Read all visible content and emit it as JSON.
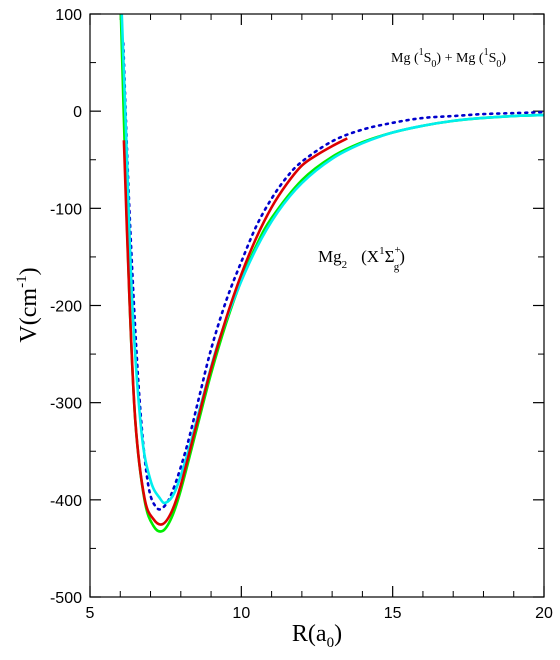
{
  "chart_data": {
    "type": "line",
    "xlim": [
      5,
      20
    ],
    "ylim": [
      -500,
      100
    ],
    "x_ticks": [
      5,
      10,
      15,
      20
    ],
    "y_ticks": [
      -500,
      -400,
      -300,
      -200,
      -100,
      0,
      100
    ],
    "x_minor_step": 1,
    "y_minor_step": 50,
    "xlabel": {
      "main": "R(a",
      "sub": "0",
      "close": ")"
    },
    "ylabel": {
      "main": "V(cm",
      "sup": "-1",
      "close": ")"
    },
    "annotations": {
      "asymptote": {
        "a": "Mg (",
        "sup1": "1",
        "b": "S",
        "sub1": "0",
        "c": ") + Mg (",
        "sup2": "1",
        "d": "S",
        "sub2": "0",
        "e": ")"
      },
      "state": {
        "a": "Mg",
        "sub1": "2",
        "b": "(X",
        "sup1": "1",
        "c": "Σ",
        "sup2": "+",
        "sub2": "g",
        "d": ")"
      }
    },
    "series": [
      {
        "color": "#0000cc",
        "style": "dotted",
        "x": [
          6.1,
          6.3,
          6.6,
          6.9,
          7.2,
          7.5,
          7.8,
          8.2,
          8.6,
          9.0,
          9.5,
          10.0,
          10.5,
          11.0,
          11.5,
          12.0,
          13.0,
          14.0,
          15.0,
          16.0,
          17.0,
          18.0,
          19.0,
          20.0
        ],
        "y": [
          70,
          -100,
          -280,
          -380,
          -408,
          -405,
          -385,
          -345,
          -295,
          -245,
          -195,
          -155,
          -118,
          -90,
          -68,
          -52,
          -31,
          -19,
          -12,
          -7,
          -5,
          -3,
          -2,
          -1
        ]
      },
      {
        "color": "#00ee00",
        "style": "solid",
        "x": [
          6.02,
          6.15,
          6.3,
          6.5,
          6.8,
          7.1,
          7.4,
          7.7,
          8.0,
          8.5,
          9.0,
          9.5,
          10.0,
          10.5,
          11.0,
          12.0,
          13.0,
          14.0,
          15.0,
          16.0,
          17.0,
          18.0,
          19.0,
          20.0
        ],
        "y": [
          100,
          -40,
          -190,
          -320,
          -400,
          -427,
          -432,
          -418,
          -390,
          -330,
          -270,
          -218,
          -174,
          -138,
          -110,
          -71,
          -47,
          -32,
          -22,
          -15,
          -10,
          -7,
          -5,
          -4
        ]
      },
      {
        "color": "#00eeee",
        "style": "solid",
        "x": [
          6.05,
          6.2,
          6.4,
          6.7,
          7.0,
          7.3,
          7.5,
          7.8,
          8.2,
          8.7,
          9.2,
          9.8,
          10.5,
          11.2,
          12.0,
          13.0,
          14.0,
          15.0,
          16.0,
          17.0,
          18.0,
          19.0,
          20.0
        ],
        "y": [
          100,
          -30,
          -200,
          -330,
          -380,
          -398,
          -403,
          -392,
          -355,
          -298,
          -242,
          -190,
          -141,
          -104,
          -74,
          -49,
          -33,
          -22,
          -15,
          -10,
          -7,
          -5,
          -4
        ]
      },
      {
        "color": "#dd0000",
        "style": "solid",
        "x": [
          6.12,
          6.3,
          6.5,
          6.8,
          7.1,
          7.4,
          7.7,
          8.0,
          8.5,
          9.0,
          9.5,
          10.0,
          10.5,
          11.0,
          11.5,
          12.0,
          12.5,
          13.0,
          13.5
        ],
        "y": [
          -30,
          -190,
          -320,
          -398,
          -420,
          -425,
          -412,
          -385,
          -325,
          -265,
          -213,
          -168,
          -130,
          -99,
          -75,
          -56,
          -45,
          -36,
          -28
        ]
      }
    ]
  }
}
